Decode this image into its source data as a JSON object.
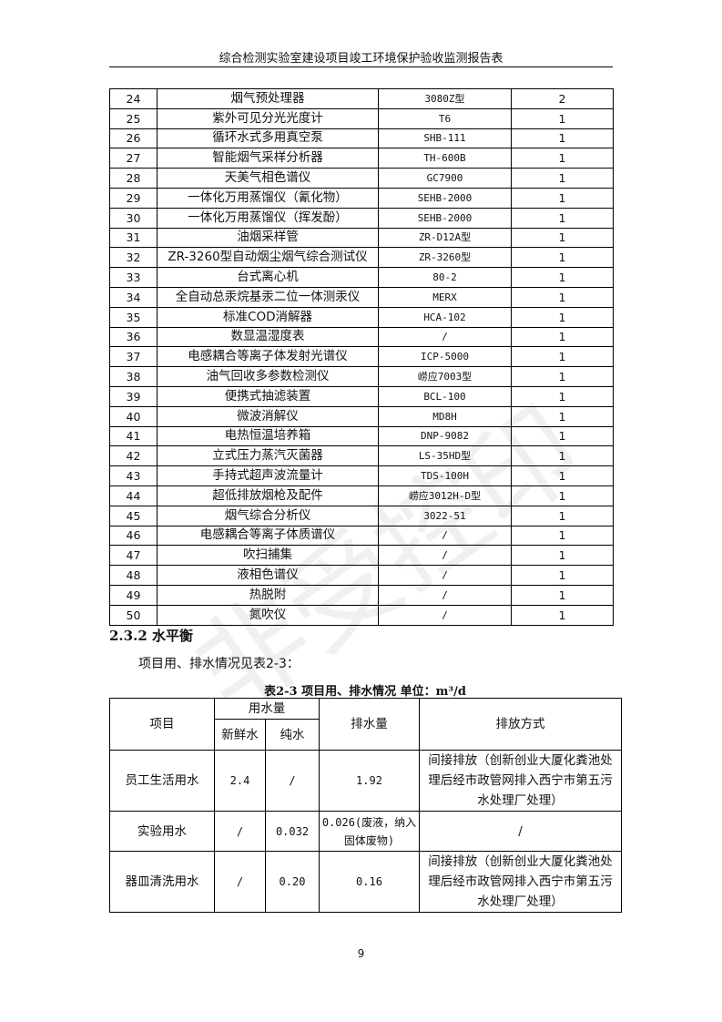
{
  "header": {
    "title": "综合检测实验室建设项目竣工环境保护验收监测报告表"
  },
  "watermark": "非受控印",
  "equipment": [
    [
      "24",
      "烟气预处理器",
      "3080Z型",
      "2"
    ],
    [
      "25",
      "紫外可见分光光度计",
      "T6",
      "1"
    ],
    [
      "26",
      "循环水式多用真空泵",
      "SHB-111",
      "1"
    ],
    [
      "27",
      "智能烟气采样分析器",
      "TH-600B",
      "1"
    ],
    [
      "28",
      "天美气相色谱仪",
      "GC7900",
      "1"
    ],
    [
      "29",
      "一体化万用蒸馏仪（氰化物）",
      "SEHB-2000",
      "1"
    ],
    [
      "30",
      "一体化万用蒸馏仪（挥发酚）",
      "SEHB-2000",
      "1"
    ],
    [
      "31",
      "油烟采样管",
      "ZR-D12A型",
      "1"
    ],
    [
      "32",
      "ZR-3260型自动烟尘烟气综合测试仪",
      "ZR-3260型",
      "1"
    ],
    [
      "33",
      "台式离心机",
      "80-2",
      "1"
    ],
    [
      "34",
      "全自动总汞烷基汞二位一体测汞仪",
      "MERX",
      "1"
    ],
    [
      "35",
      "标准COD消解器",
      "HCA-102",
      "1"
    ],
    [
      "36",
      "数显温湿度表",
      "/",
      "1"
    ],
    [
      "37",
      "电感耦合等离子体发射光谱仪",
      "ICP-5000",
      "1"
    ],
    [
      "38",
      "油气回收多参数检测仪",
      "崂应7003型",
      "1"
    ],
    [
      "39",
      "便携式抽滤装置",
      "BCL-100",
      "1"
    ],
    [
      "40",
      "微波消解仪",
      "MD8H",
      "1"
    ],
    [
      "41",
      "电热恒温培养箱",
      "DNP-9082",
      "1"
    ],
    [
      "42",
      "立式压力蒸汽灭菌器",
      "LS-35HD型",
      "1"
    ],
    [
      "43",
      "手持式超声波流量计",
      "TDS-100H",
      "1"
    ],
    [
      "44",
      "超低排放烟枪及配件",
      "崂应3012H-D型",
      "1"
    ],
    [
      "45",
      "烟气综合分析仪",
      "3022-51",
      "1"
    ],
    [
      "46",
      "电感耦合等离子体质谱仪",
      "/",
      "1"
    ],
    [
      "47",
      "吹扫捕集",
      "/",
      "1"
    ],
    [
      "48",
      "液相色谱仪",
      "/",
      "1"
    ],
    [
      "49",
      "热脱附",
      "/",
      "1"
    ],
    [
      "50",
      "氮吹仪",
      "/",
      "1"
    ]
  ],
  "section": {
    "heading": "2.3.2  水平衡",
    "paragraph": "项目用、排水情况见表2-3："
  },
  "water_table": {
    "caption": "表2-3  项目用、排水情况   单位：m³/d",
    "headers": {
      "item": "项目",
      "usage": "用水量",
      "fresh": "新鲜水",
      "pure": "纯水",
      "discharge": "排水量",
      "method": "排放方式"
    },
    "rows": [
      [
        "员工生活用水",
        "2.4",
        "/",
        "1.92",
        "间接排放（创新创业大厦化粪池处理后经市政管网排入西宁市第五污水处理厂处理）"
      ],
      [
        "实验用水",
        "/",
        "0.032",
        "0.026(废液，纳入固体废物)",
        "/"
      ],
      [
        "器皿清洗用水",
        "/",
        "0.20",
        "0.16",
        "间接排放（创新创业大厦化粪池处理后经市政管网排入西宁市第五污水处理厂处理）"
      ]
    ]
  },
  "page_number": "9"
}
